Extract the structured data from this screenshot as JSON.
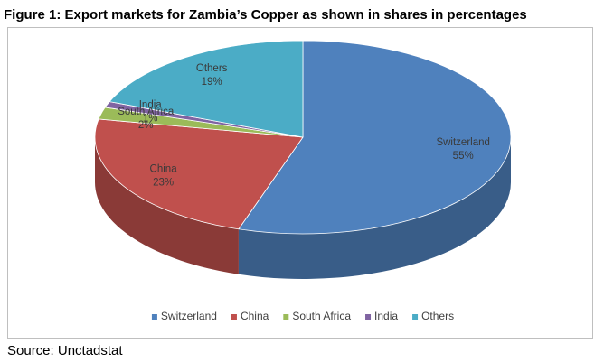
{
  "chart_data": {
    "type": "pie3d",
    "title": "Figure 1: Export markets for Zambia’s Copper as shown in shares in percentages",
    "source": "Source: Unctadstat",
    "categories": [
      "Switzerland",
      "China",
      "South Africa",
      "India",
      "Others"
    ],
    "values": [
      55,
      23,
      2,
      1,
      19
    ],
    "value_labels": [
      "55%",
      "23%",
      "2%",
      "1%",
      "19%"
    ],
    "colors": [
      "#4f81bd",
      "#c0504d",
      "#9bbb59",
      "#8064a2",
      "#4bacc6"
    ],
    "legend": "bottom"
  }
}
